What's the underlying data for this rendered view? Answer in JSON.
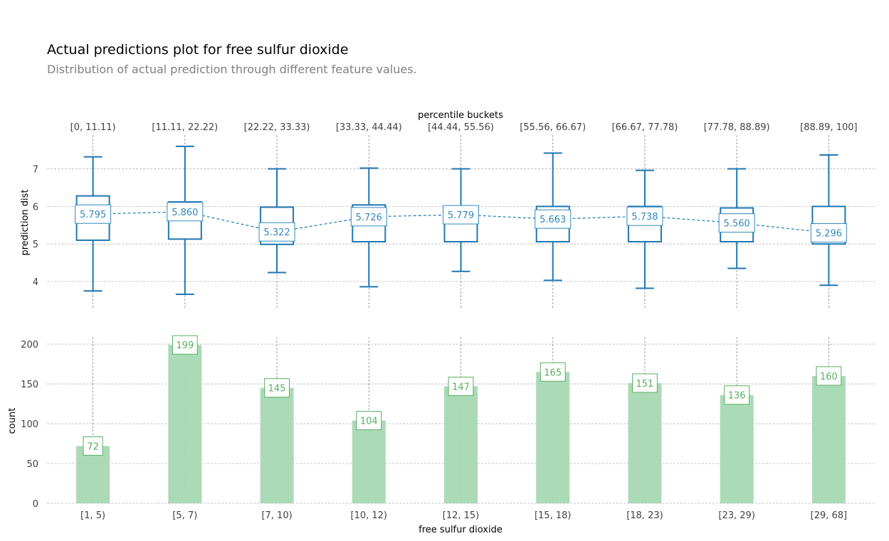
{
  "title": "Actual predictions plot for free sulfur dioxide",
  "subtitle": "Distribution of actual prediction through different feature values.",
  "colors": {
    "box": "#1f77b4",
    "line": "#1f77b4",
    "label": "#3288bd",
    "bar": "#a6d8b3",
    "bar_label": "#5aae61"
  },
  "chart_data": [
    {
      "type": "box",
      "xlabel": "percentile buckets",
      "ylabel": "prediction dist",
      "ylim": [
        3.3,
        7.9
      ],
      "yticks": [
        4,
        5,
        6,
        7
      ],
      "grid": true,
      "categories": [
        "[0, 11.11)",
        "[11.11, 22.22)",
        "[22.22, 33.33)",
        "[33.33, 44.44)",
        "[44.44, 55.56)",
        "[55.56, 66.67)",
        "[66.67, 77.78)",
        "[77.78, 88.89)",
        "[88.89, 100]"
      ],
      "boxes": [
        {
          "whislo": 3.75,
          "q1": 5.1,
          "q3": 6.28,
          "whishi": 7.32
        },
        {
          "whislo": 3.66,
          "q1": 5.13,
          "q3": 6.12,
          "whishi": 7.6
        },
        {
          "whislo": 4.24,
          "q1": 4.99,
          "q3": 5.98,
          "whishi": 7.0
        },
        {
          "whislo": 3.86,
          "q1": 5.06,
          "q3": 6.04,
          "whishi": 7.02
        },
        {
          "whislo": 4.27,
          "q1": 5.06,
          "q3": 6.0,
          "whishi": 7.0
        },
        {
          "whislo": 4.03,
          "q1": 5.06,
          "q3": 6.0,
          "whishi": 7.42
        },
        {
          "whislo": 3.82,
          "q1": 5.06,
          "q3": 6.0,
          "whishi": 6.96
        },
        {
          "whislo": 4.35,
          "q1": 5.06,
          "q3": 5.96,
          "whishi": 7.0
        },
        {
          "whislo": 3.9,
          "q1": 5.0,
          "q3": 6.0,
          "whishi": 7.37
        }
      ],
      "means": [
        5.795,
        5.86,
        5.322,
        5.726,
        5.779,
        5.663,
        5.738,
        5.56,
        5.296
      ],
      "mean_labels": [
        "5.795",
        "5.860",
        "5.322",
        "5.726",
        "5.779",
        "5.663",
        "5.738",
        "5.560",
        "5.296"
      ]
    },
    {
      "type": "bar",
      "xlabel": "free sulfur dioxide",
      "ylabel": "count",
      "ylim": [
        0,
        209
      ],
      "yticks": [
        0,
        50,
        100,
        150,
        200
      ],
      "grid": true,
      "categories": [
        "[1, 5)",
        "[5, 7)",
        "[7, 10)",
        "[10, 12)",
        "[12, 15)",
        "[15, 18)",
        "[18, 23)",
        "[23, 29)",
        "[29, 68]"
      ],
      "values": [
        72,
        199,
        145,
        104,
        147,
        165,
        151,
        136,
        160
      ],
      "value_labels": [
        "72",
        "199",
        "145",
        "104",
        "147",
        "165",
        "151",
        "136",
        "160"
      ]
    }
  ]
}
